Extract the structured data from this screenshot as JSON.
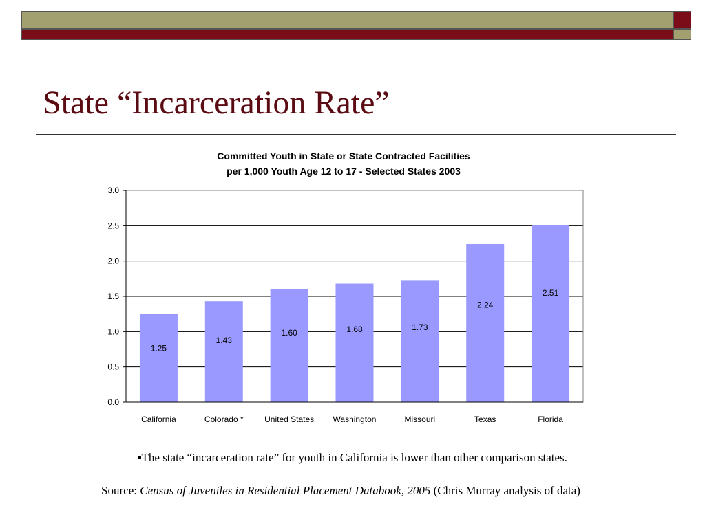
{
  "slide": {
    "title": "State “Incarceration Rate”",
    "bullet": "The state “incarceration rate” for youth in California is lower than other comparison states.",
    "source_prefix": "Source: ",
    "source_title": "Census of Juveniles in Residential Placement Databook, 2005",
    "source_suffix": " (Chris Murray analysis of data)"
  },
  "colors": {
    "bar": "#9999ff",
    "title": "#5a0c12",
    "band_olive": "#a3a070",
    "band_maroon": "#7a0d17"
  },
  "chart_data": {
    "type": "bar",
    "title": "Committed Youth in State or State Contracted Facilities",
    "subtitle": "per 1,000 Youth Age 12 to 17 - Selected States 2003",
    "categories": [
      "California",
      "Colorado *",
      "United States",
      "Washington",
      "Missouri",
      "Texas",
      "Florida"
    ],
    "values": [
      1.25,
      1.43,
      1.6,
      1.68,
      1.73,
      2.24,
      2.51
    ],
    "value_labels": [
      "1.25",
      "1.43",
      "1.60",
      "1.68",
      "1.73",
      "2.24",
      "2.51"
    ],
    "ylim": [
      0,
      3.0
    ],
    "yticks": [
      "0.0",
      "0.5",
      "1.0",
      "1.5",
      "2.0",
      "2.5",
      "3.0"
    ],
    "grid": true,
    "legend": "none"
  }
}
